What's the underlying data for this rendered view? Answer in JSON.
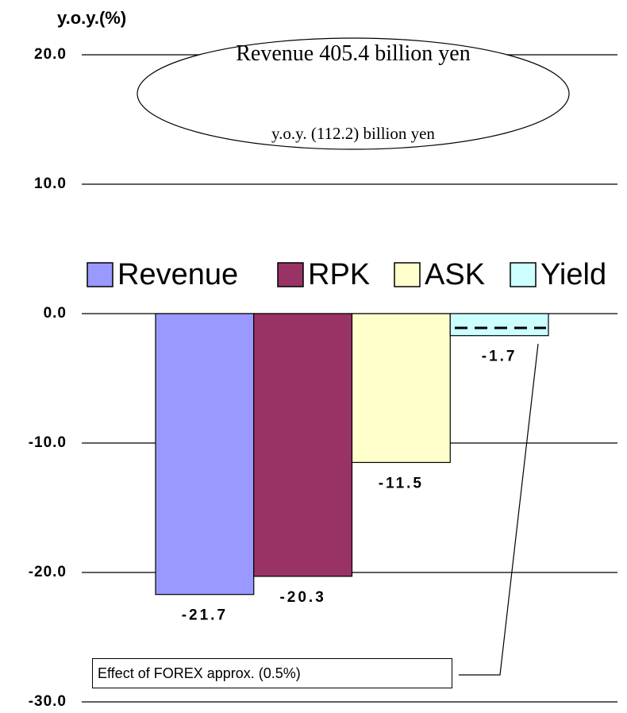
{
  "chart_data": {
    "type": "bar",
    "y_label": "y.o.y.(%)",
    "categories": [
      null
    ],
    "series": [
      {
        "name": "Revenue",
        "color": "#9999ff",
        "values": [
          -21.7
        ]
      },
      {
        "name": "RPK",
        "color": "#993366",
        "values": [
          -20.3
        ]
      },
      {
        "name": "ASK",
        "color": "#ffffcc",
        "values": [
          -11.5
        ]
      },
      {
        "name": "Yield",
        "color": "#ccffff",
        "values": [
          -1.7
        ]
      }
    ],
    "ylim": [
      -30,
      20
    ],
    "yticks": [
      {
        "value": -30,
        "label": "-30.0"
      },
      {
        "value": -20,
        "label": "-20.0"
      },
      {
        "value": -10,
        "label": "-10.0"
      },
      {
        "value": 0,
        "label": "0.0"
      },
      {
        "value": 10,
        "label": "10.0"
      },
      {
        "value": 20,
        "label": "20.0"
      }
    ],
    "grid": true,
    "legend": "middle",
    "annotations": {
      "ellipse_main": "Revenue 405.4 billion yen",
      "ellipse_sub": "y.o.y. (112.2) billion yen",
      "forex_note": "Effect of FOREX  approx. (0.5%)"
    }
  }
}
